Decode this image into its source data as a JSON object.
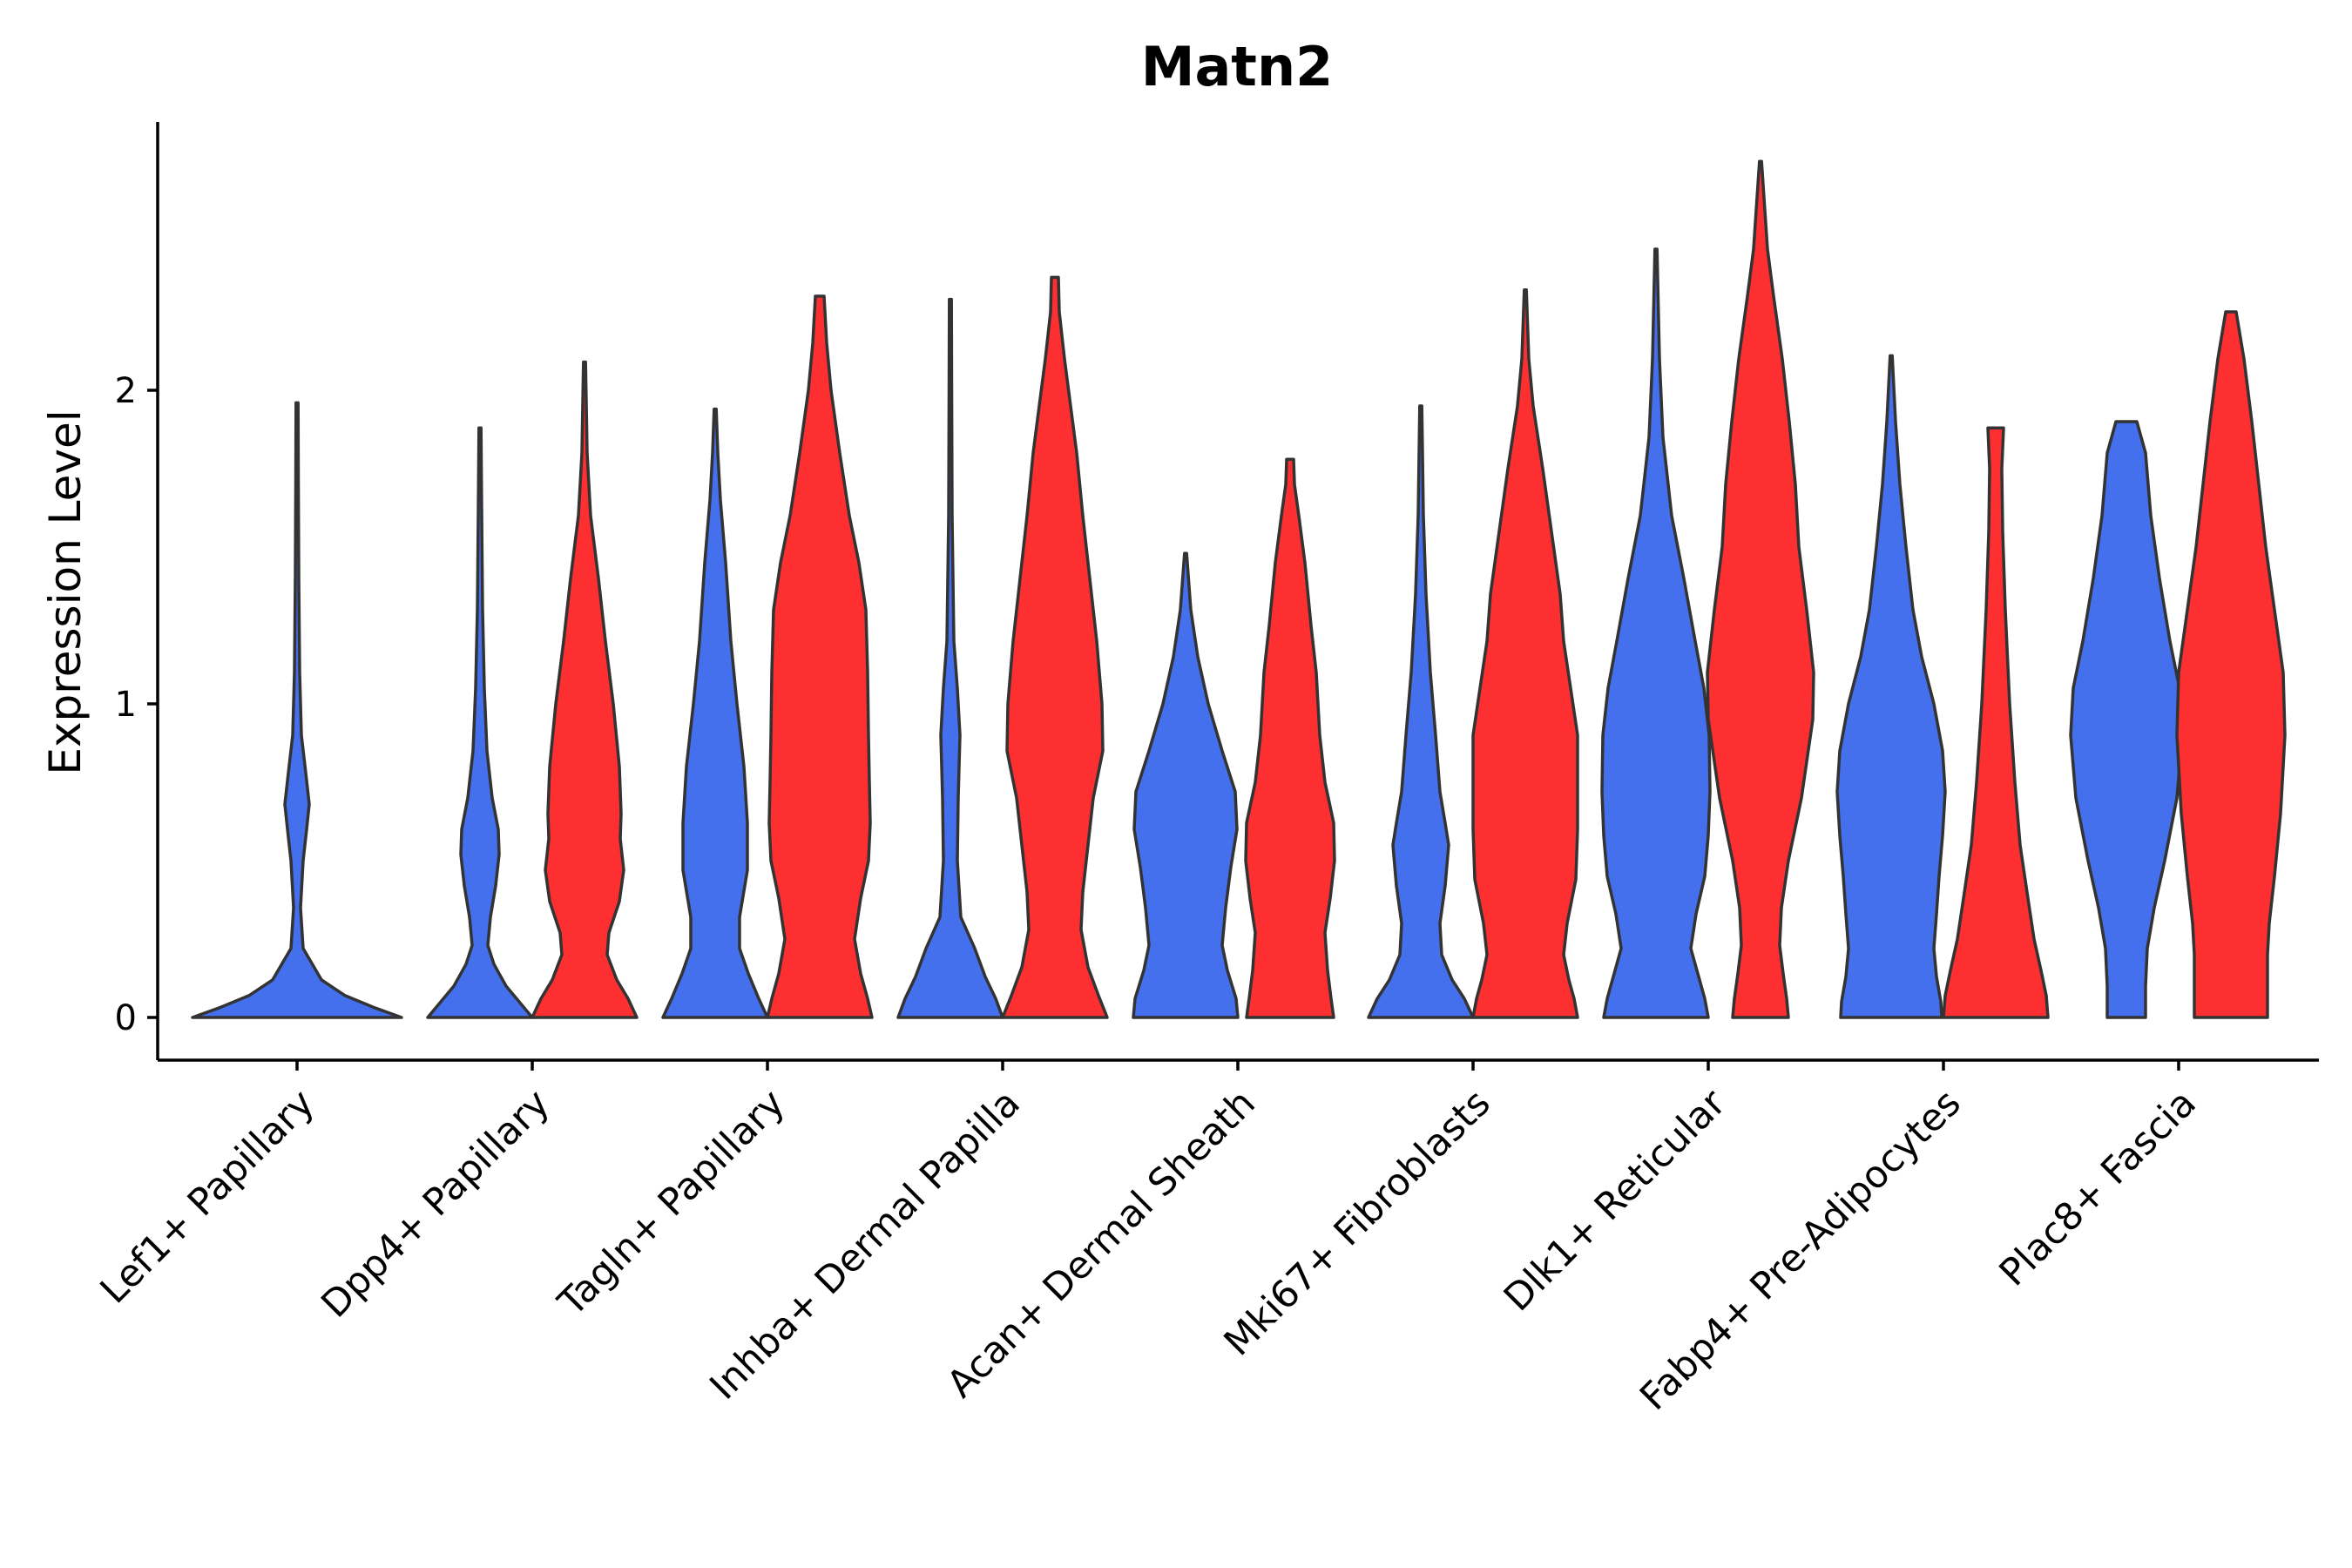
{
  "chart_data": {
    "type": "violin",
    "title": "Matn2",
    "xlabel": "",
    "ylabel": "Expression Level",
    "ylim": [
      -0.14,
      2.85
    ],
    "yticks": [
      0,
      1,
      2
    ],
    "categories": [
      "Lef1+ Papillary",
      "Dpp4+ Papillary",
      "Tagln+ Papillary",
      "Inhba+ Dermal Papilla",
      "Acan+ Dermal Sheath",
      "Mki67+ Fibroblasts",
      "Dlk1+ Reticular",
      "Fabp4+ Pre-Adipocytes",
      "Plac8+ Fascia"
    ],
    "series": [
      {
        "name": "group 1",
        "color": "#4470EE",
        "max_values": [
          1.96,
          1.88,
          1.94,
          2.29,
          1.48,
          1.95,
          2.45,
          2.11,
          1.9
        ]
      },
      {
        "name": "group 2",
        "color": "#FE2F30",
        "max_values": [
          null,
          2.09,
          2.3,
          2.36,
          1.78,
          2.32,
          2.73,
          1.88,
          2.25
        ]
      }
    ],
    "legend": "none"
  }
}
